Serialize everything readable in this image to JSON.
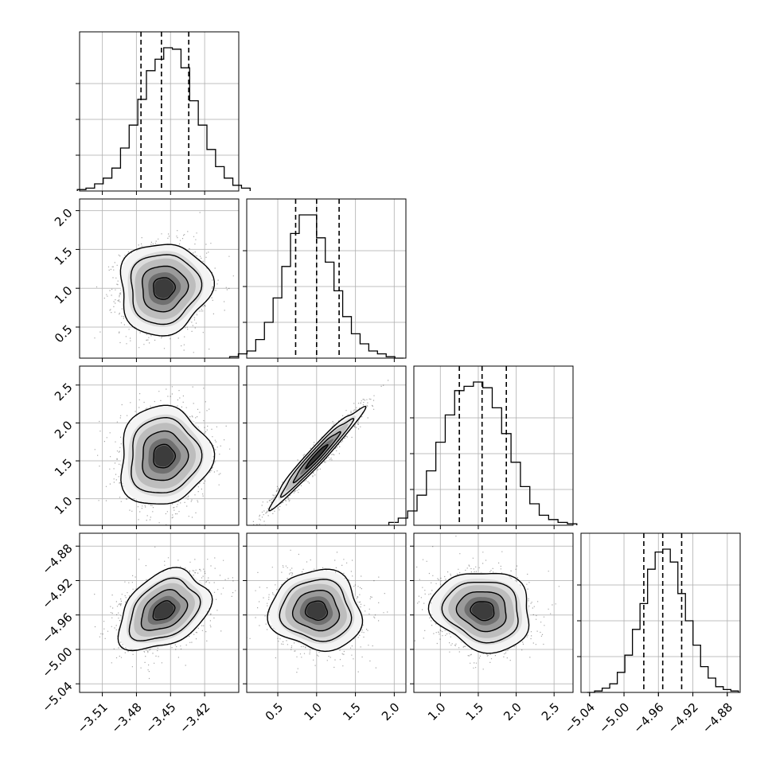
{
  "chart_data": {
    "type": "corner",
    "grid": true,
    "parameters": [
      {
        "range": [
          -3.53,
          -3.39
        ],
        "ticks": [
          -3.51,
          -3.48,
          -3.45,
          -3.42
        ],
        "tick_labels": [
          "−3.51",
          "−3.48",
          "−3.45",
          "−3.42"
        ],
        "quantiles": [
          -3.476,
          -3.458,
          -3.434
        ],
        "mean": -3.456,
        "sd": 0.019
      },
      {
        "range": [
          0.1,
          2.15
        ],
        "ticks": [
          0.5,
          1.0,
          1.5,
          2.0
        ],
        "tick_labels": [
          "0.5",
          "1.0",
          "1.5",
          "2.0"
        ],
        "quantiles": [
          0.73,
          1.0,
          1.29
        ],
        "mean": 1.0,
        "sd": 0.28
      },
      {
        "range": [
          0.65,
          2.75
        ],
        "ticks": [
          1.0,
          1.5,
          2.0,
          2.5
        ],
        "tick_labels": [
          "1.0",
          "1.5",
          "2.0",
          "2.5"
        ],
        "quantiles": [
          1.25,
          1.55,
          1.87
        ],
        "mean": 1.56,
        "sd": 0.31
      },
      {
        "range": [
          -5.05,
          -4.865
        ],
        "ticks": [
          -5.04,
          -5.0,
          -4.96,
          -4.92,
          -4.88
        ],
        "tick_labels": [
          "−5.04",
          "−5.00",
          "−4.96",
          "−4.92",
          "−4.88"
        ],
        "quantiles": [
          -4.977,
          -4.955,
          -4.933
        ],
        "mean": -4.955,
        "sd": 0.022
      }
    ],
    "correlations": [
      [
        1.0,
        0.05,
        0.05,
        0.35
      ],
      [
        0.05,
        1.0,
        0.97,
        -0.05
      ],
      [
        0.05,
        0.97,
        1.0,
        -0.12
      ],
      [
        0.35,
        -0.05,
        -0.12,
        1.0
      ]
    ],
    "histograms": [
      [
        0.01,
        0.02,
        0.05,
        0.09,
        0.16,
        0.3,
        0.46,
        0.64,
        0.84,
        0.92,
        1.0,
        0.99,
        0.86,
        0.63,
        0.46,
        0.29,
        0.17,
        0.09,
        0.04,
        0.02
      ],
      [
        0.01,
        0.03,
        0.05,
        0.13,
        0.25,
        0.42,
        0.64,
        0.87,
        1.0,
        1.0,
        0.84,
        0.67,
        0.47,
        0.29,
        0.17,
        0.1,
        0.05,
        0.03,
        0.01,
        0.0
      ],
      [
        0.02,
        0.05,
        0.1,
        0.21,
        0.38,
        0.58,
        0.77,
        0.94,
        0.97,
        1.0,
        0.96,
        0.82,
        0.64,
        0.44,
        0.27,
        0.15,
        0.07,
        0.04,
        0.02,
        0.01
      ],
      [
        0.0,
        0.01,
        0.03,
        0.06,
        0.14,
        0.26,
        0.44,
        0.62,
        0.86,
        0.98,
        1.0,
        0.91,
        0.69,
        0.5,
        0.33,
        0.18,
        0.1,
        0.04,
        0.02,
        0.01
      ]
    ]
  }
}
